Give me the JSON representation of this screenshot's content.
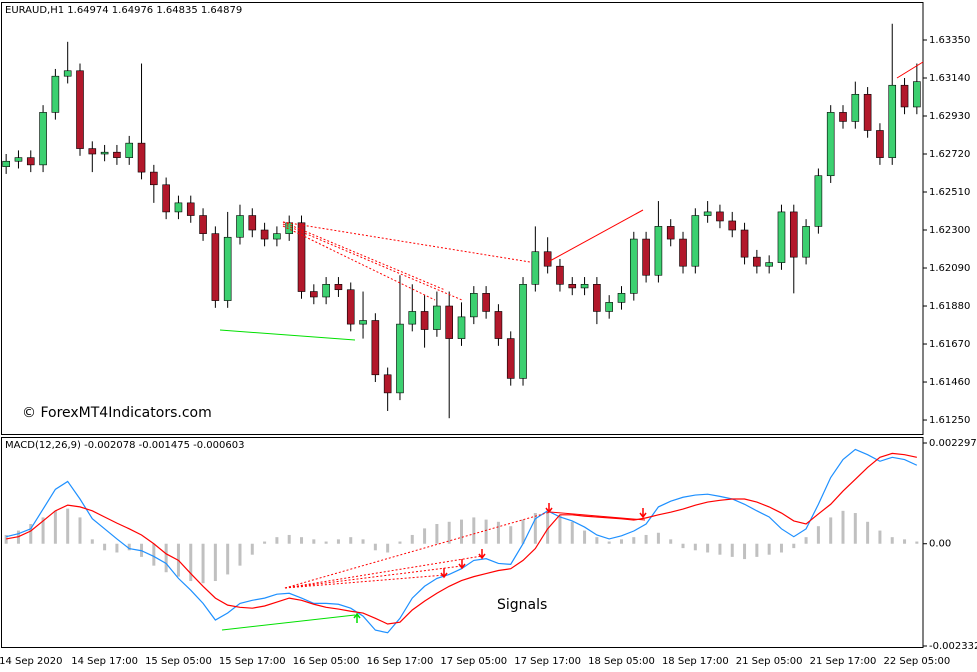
{
  "chart_data": [
    {
      "type": "candlestick",
      "title": "EURAUD,H1  1.64974 1.64976 1.64835 1.64879",
      "watermark": "© ForexMT4Indicators.com",
      "up_color": "#3cd070",
      "down_color": "#b2182b",
      "open": [
        1.6265,
        1.6268,
        1.627,
        1.6266,
        1.6295,
        1.6315,
        1.6318,
        1.6275,
        1.6272,
        1.6273,
        1.627,
        1.6278,
        1.6262,
        1.6255,
        1.624,
        1.6245,
        1.6238,
        1.6228,
        1.6191,
        1.6226,
        1.6238,
        1.623,
        1.6225,
        1.6228,
        1.6234,
        1.6196,
        1.6193,
        1.62,
        1.6197,
        1.6178,
        1.618,
        1.615,
        1.614,
        1.6178,
        1.6185,
        1.6175,
        1.6188,
        1.617,
        1.6182,
        1.6195,
        1.6185,
        1.617,
        1.6148,
        1.62,
        1.6218,
        1.621,
        1.62,
        1.6198,
        1.62,
        1.6185,
        1.619,
        1.6195,
        1.6225,
        1.6205,
        1.6232,
        1.6225,
        1.621,
        1.6238,
        1.624,
        1.6235,
        1.623,
        1.6215,
        1.621,
        1.6212,
        1.624,
        1.6215,
        1.6232,
        1.626,
        1.6295,
        1.629,
        1.6305,
        1.6285,
        1.627,
        1.631,
        1.6298
      ],
      "high": [
        1.6272,
        1.6274,
        1.6274,
        1.6299,
        1.6319,
        1.6334,
        1.6322,
        1.6279,
        1.6277,
        1.6277,
        1.6282,
        1.6322,
        1.6266,
        1.6259,
        1.6249,
        1.6249,
        1.6242,
        1.6232,
        1.624,
        1.6244,
        1.6242,
        1.6234,
        1.6232,
        1.6238,
        1.6238,
        1.62,
        1.6204,
        1.6204,
        1.6201,
        1.6196,
        1.6184,
        1.6154,
        1.6205,
        1.62,
        1.6194,
        1.6196,
        1.6196,
        1.619,
        1.6199,
        1.6199,
        1.6189,
        1.6174,
        1.6204,
        1.6232,
        1.6226,
        1.6214,
        1.6204,
        1.6204,
        1.6204,
        1.6194,
        1.6199,
        1.6229,
        1.6229,
        1.6246,
        1.6236,
        1.6229,
        1.6242,
        1.6246,
        1.6244,
        1.624,
        1.6234,
        1.6219,
        1.6216,
        1.6244,
        1.6244,
        1.6236,
        1.6264,
        1.6299,
        1.6299,
        1.6312,
        1.6309,
        1.6289,
        1.6344,
        1.6314,
        1.6322
      ],
      "low": [
        1.6261,
        1.6264,
        1.6262,
        1.6262,
        1.6291,
        1.6311,
        1.6271,
        1.6262,
        1.6268,
        1.6266,
        1.6266,
        1.6258,
        1.6245,
        1.6236,
        1.6236,
        1.6234,
        1.6224,
        1.6187,
        1.6187,
        1.6222,
        1.6226,
        1.6221,
        1.6221,
        1.6224,
        1.6192,
        1.6189,
        1.6189,
        1.6193,
        1.6174,
        1.617,
        1.6146,
        1.613,
        1.6136,
        1.6174,
        1.6165,
        1.6171,
        1.6126,
        1.6166,
        1.6178,
        1.6181,
        1.6166,
        1.6144,
        1.6144,
        1.6196,
        1.6206,
        1.6196,
        1.6194,
        1.6194,
        1.6178,
        1.6181,
        1.6186,
        1.6191,
        1.6201,
        1.6201,
        1.6221,
        1.6206,
        1.6206,
        1.6234,
        1.6231,
        1.6226,
        1.6211,
        1.6206,
        1.6206,
        1.6208,
        1.6195,
        1.6211,
        1.6228,
        1.6256,
        1.6286,
        1.6286,
        1.6281,
        1.6266,
        1.6266,
        1.6294,
        1.6294
      ],
      "close": [
        1.6268,
        1.627,
        1.6266,
        1.6295,
        1.6315,
        1.6318,
        1.6275,
        1.6272,
        1.6273,
        1.627,
        1.6278,
        1.6262,
        1.6255,
        1.624,
        1.6245,
        1.6238,
        1.6228,
        1.6191,
        1.6226,
        1.6238,
        1.623,
        1.6225,
        1.6228,
        1.6234,
        1.6196,
        1.6193,
        1.62,
        1.6197,
        1.6178,
        1.618,
        1.615,
        1.614,
        1.6178,
        1.6185,
        1.6175,
        1.6188,
        1.617,
        1.6182,
        1.6195,
        1.6185,
        1.617,
        1.6148,
        1.62,
        1.6218,
        1.621,
        1.62,
        1.6198,
        1.62,
        1.6185,
        1.619,
        1.6195,
        1.6225,
        1.6205,
        1.6232,
        1.6225,
        1.621,
        1.6238,
        1.624,
        1.6235,
        1.623,
        1.6215,
        1.621,
        1.6212,
        1.624,
        1.6215,
        1.6232,
        1.626,
        1.6295,
        1.629,
        1.6305,
        1.6285,
        1.627,
        1.631,
        1.6298,
        1.6312
      ],
      "ylim": [
        1.6117,
        1.6356
      ],
      "yticks": [
        {
          "value": 1.6335,
          "label": "1.63350"
        },
        {
          "value": 1.6314,
          "label": "1.63140"
        },
        {
          "value": 1.6293,
          "label": "1.62930"
        },
        {
          "value": 1.6272,
          "label": "1.62720"
        },
        {
          "value": 1.6251,
          "label": "1.62510"
        },
        {
          "value": 1.623,
          "label": "1.62300"
        },
        {
          "value": 1.6209,
          "label": "1.62090"
        },
        {
          "value": 1.6188,
          "label": "1.61880"
        },
        {
          "value": 1.6167,
          "label": "1.61670"
        },
        {
          "value": 1.6146,
          "label": "1.61460"
        },
        {
          "value": 1.6125,
          "label": "1.61250"
        }
      ]
    },
    {
      "type": "macd",
      "title": "MACD(12,26,9) -0.002078 -0.001475 -0.000603",
      "annotation": "Signals",
      "categories": [
        null,
        null,
        "14 Sep 2020",
        null,
        null,
        null,
        null,
        null,
        "14 Sep 17:00",
        null,
        null,
        null,
        null,
        null,
        "15 Sep 05:00",
        null,
        null,
        null,
        null,
        null,
        "15 Sep 17:00",
        null,
        null,
        null,
        null,
        null,
        "16 Sep 05:00",
        null,
        null,
        null,
        null,
        null,
        "16 Sep 17:00",
        null,
        null,
        null,
        null,
        null,
        "17 Sep 05:00",
        null,
        null,
        null,
        null,
        null,
        "17 Sep 17:00",
        null,
        null,
        null,
        null,
        null,
        "18 Sep 05:00",
        null,
        null,
        null,
        null,
        null,
        "18 Sep 17:00",
        null,
        null,
        null,
        null,
        null,
        "21 Sep 05:00",
        null,
        null,
        null,
        null,
        null,
        "21 Sep 17:00",
        null,
        null,
        null,
        null,
        null,
        "22 Sep 05:00"
      ],
      "histogram": {
        "color": "#c0c0c0",
        "values": [
          0.0002,
          0.0003,
          0.00045,
          0.0006,
          0.00075,
          0.0008,
          0.0006,
          0.0001,
          -0.00015,
          -0.0002,
          -0.00015,
          -0.0003,
          -0.0005,
          -0.00065,
          -0.00075,
          -0.00085,
          -0.0009,
          -0.00085,
          -0.0007,
          -0.0005,
          -0.00025,
          5e-05,
          0.00015,
          0.0002,
          0.00015,
          0.0001,
          5e-05,
          0.0001,
          0.00015,
          0.0001,
          -0.00015,
          -0.0002,
          5e-05,
          0.0002,
          0.00035,
          0.00045,
          0.0005,
          0.00055,
          0.0006,
          0.00055,
          0.0005,
          0.0004,
          0.00055,
          0.0007,
          0.00075,
          0.00065,
          0.0005,
          0.0003,
          0.00015,
          5e-05,
          0.0001,
          0.00015,
          0.0002,
          0.00025,
          0.0001,
          -0.0001,
          -0.00015,
          -0.0002,
          -0.00025,
          -0.0003,
          -0.00035,
          -0.0003,
          -0.00025,
          -0.0002,
          -0.0001,
          0.00015,
          0.0004,
          0.0006,
          0.00075,
          0.0007,
          0.0005,
          0.0003,
          0.00015,
          0.0001,
          5e-05
        ]
      },
      "series": [
        {
          "color": "#1e90ff",
          "values": [
            0.00016,
            0.00023,
            0.00034,
            0.00079,
            0.00124,
            0.00142,
            0.00102,
            0.00057,
            0.00034,
            0.00011,
            -0.00011,
            -0.00016,
            -0.00029,
            -0.00045,
            -0.00079,
            -0.00106,
            -0.00136,
            -0.00174,
            -0.00158,
            -0.00136,
            -0.00129,
            -0.00124,
            -0.00115,
            -0.00113,
            -0.00124,
            -0.00136,
            -0.00136,
            -0.00138,
            -0.00147,
            -0.00165,
            -0.00197,
            -0.00203,
            -0.0017,
            -0.00124,
            -0.00097,
            -0.00079,
            -0.0007,
            -0.00057,
            -0.00038,
            -0.00034,
            -0.00045,
            -0.00047,
            0,
            0.00057,
            0.00075,
            0.00061,
            0.00052,
            0.00038,
            0.0002,
            0.00011,
            0.00018,
            0.00029,
            0.00045,
            0.00084,
            0.00097,
            0.00106,
            0.00111,
            0.00113,
            0.00108,
            0.00102,
            0.0009,
            0.00075,
            0.00061,
            0.00034,
            0.00016,
            0.00034,
            0.0009,
            0.00151,
            0.00192,
            0.00215,
            0.00203,
            0.00188,
            0.00197,
            0.00192,
            0.00179
          ]
        },
        {
          "color": "#ff0000",
          "values": [
            0.00011,
            0.00016,
            0.00029,
            0.00052,
            0.00075,
            0.00088,
            0.00084,
            0.00075,
            0.00061,
            0.00047,
            0.00034,
            0.0002,
            0,
            -0.00023,
            -0.00038,
            -0.00068,
            -0.00097,
            -0.00124,
            -0.0014,
            -0.00145,
            -0.00147,
            -0.00142,
            -0.00133,
            -0.00124,
            -0.00129,
            -0.00138,
            -0.00145,
            -0.00149,
            -0.00154,
            -0.00158,
            -0.0017,
            -0.00183,
            -0.00179,
            -0.00151,
            -0.00131,
            -0.00113,
            -0.00097,
            -0.00084,
            -0.00075,
            -0.00068,
            -0.00061,
            -0.00057,
            -0.00038,
            -0.00011,
            0.00034,
            0.00066,
            0.00066,
            0.00063,
            0.00061,
            0.00059,
            0.00057,
            0.00054,
            0.00059,
            0.00066,
            0.00072,
            0.00079,
            0.00088,
            0.00095,
            0.00099,
            0.00102,
            0.00102,
            0.00095,
            0.00084,
            0.0007,
            0.00052,
            0.00045,
            0.00068,
            0.0009,
            0.0012,
            0.00147,
            0.00174,
            0.00197,
            0.00206,
            0.00203,
            0.00197
          ]
        }
      ],
      "ylim": [
        -0.002332,
        0.002297
      ],
      "yticks": [
        0.002297,
        {
          "value": 0,
          "label": "0.00"
        },
        -0.002332
      ]
    }
  ]
}
